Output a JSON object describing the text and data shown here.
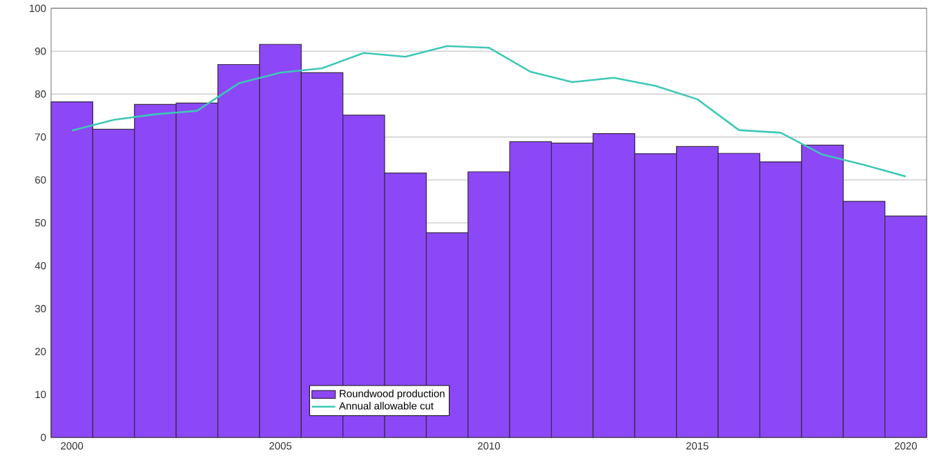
{
  "chart_data": {
    "type": "bar",
    "x": [
      2000,
      2001,
      2002,
      2003,
      2004,
      2005,
      2006,
      2007,
      2008,
      2009,
      2010,
      2011,
      2012,
      2013,
      2014,
      2015,
      2016,
      2017,
      2018,
      2019,
      2020
    ],
    "series": [
      {
        "name": "Roundwood production",
        "color": "#8c48f6",
        "values": [
          78.2,
          71.8,
          77.6,
          77.9,
          86.9,
          91.6,
          85.0,
          75.1,
          61.6,
          47.7,
          61.9,
          68.9,
          68.6,
          70.8,
          66.1,
          67.8,
          66.2,
          64.2,
          68.1,
          55.0,
          51.6
        ]
      },
      {
        "name": "Annual allowable cut",
        "type": "line",
        "color": "#3ec8b6",
        "values": [
          71.5,
          74.0,
          75.3,
          76.1,
          82.5,
          85.0,
          86.0,
          89.6,
          88.7,
          91.2,
          90.8,
          85.2,
          82.8,
          83.8,
          81.9,
          78.8,
          71.6,
          71.0,
          65.9,
          63.5,
          60.8
        ]
      }
    ],
    "xlim": [
      1999.5,
      2020.5
    ],
    "xticks": [
      2000,
      2005,
      2010,
      2015,
      2020
    ],
    "ylim": [
      0,
      100
    ],
    "yticks": [
      0,
      10,
      20,
      30,
      40,
      50,
      60,
      70,
      80,
      90,
      100
    ],
    "grid": "y",
    "legend": "bottom",
    "marker": "none",
    "line_style": "solid"
  }
}
